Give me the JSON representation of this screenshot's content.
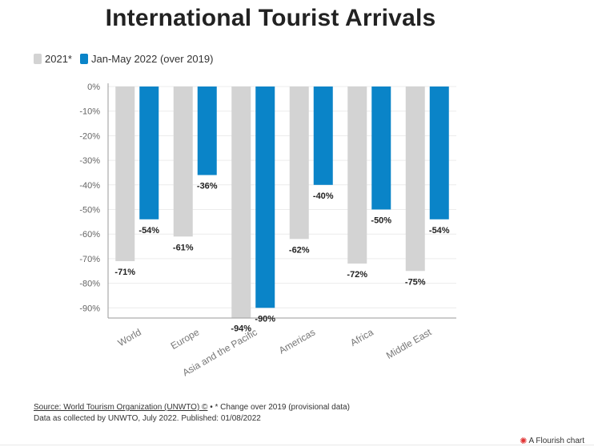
{
  "chart_data": {
    "type": "bar",
    "title": "International Tourist Arrivals",
    "categories": [
      "World",
      "Europe",
      "Asia and the Pacific",
      "Americas",
      "Africa",
      "Middle East"
    ],
    "series": [
      {
        "name": "2021*",
        "color": "#d3d3d3",
        "values": [
          -71,
          -61,
          -94,
          -62,
          -72,
          -75
        ],
        "labels": [
          "-71%",
          "-61%",
          "-94%",
          "-62%",
          "-72%",
          "-75%"
        ]
      },
      {
        "name": "Jan-May 2022 (over 2019)",
        "color": "#0a84c8",
        "values": [
          -54,
          -36,
          -90,
          -40,
          -50,
          -54
        ],
        "labels": [
          "-54%",
          "-36%",
          "-90%",
          "-40%",
          "-50%",
          "-54%"
        ]
      }
    ],
    "y_ticks": [
      "0%",
      "-10%",
      "-20%",
      "-30%",
      "-40%",
      "-50%",
      "-60%",
      "-70%",
      "-80%",
      "-90%"
    ],
    "y_tick_values": [
      0,
      -10,
      -20,
      -30,
      -40,
      -50,
      -60,
      -70,
      -80,
      -90
    ],
    "ylim": [
      -95,
      0
    ],
    "grid": true,
    "legend_position": "top-left"
  },
  "footer": {
    "source": "Source: World Tourism Organization (UNWTO) ©",
    "note": " • * Change over 2019 (provisional data)",
    "line2": "Data as collected by UNWTO, July 2022. Published: 01/08/2022"
  },
  "brand": {
    "text": "A Flourish chart",
    "icon": "flourish-logo-icon"
  }
}
